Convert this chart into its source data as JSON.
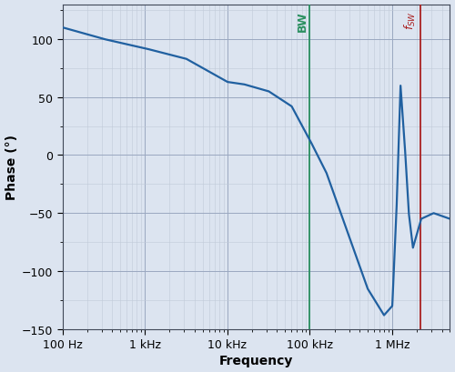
{
  "title": "",
  "xlabel": "Frequency",
  "ylabel": "Phase (°)",
  "xlim": [
    100,
    5000000
  ],
  "ylim": [
    -150,
    130
  ],
  "yticks": [
    -150,
    -100,
    -50,
    0,
    50,
    100
  ],
  "xtick_labels": [
    "100 Hz",
    "1 kHz",
    "10 kHz",
    "100 kHz",
    "1 MHz"
  ],
  "xtick_positions": [
    100,
    1000,
    10000,
    100000,
    1000000
  ],
  "bw_freq": 100000,
  "fsw_freq": 2200000,
  "bw_color": "#2a9060",
  "fsw_color": "#aa2020",
  "line_color": "#2060a0",
  "grid_major_color": "#9aa8c0",
  "grid_minor_color": "#c0cad8",
  "bg_color": "#dce4f0",
  "spine_color": "#404858",
  "fig_width": 5.0,
  "fig_height": 4.1,
  "dpi": 100
}
